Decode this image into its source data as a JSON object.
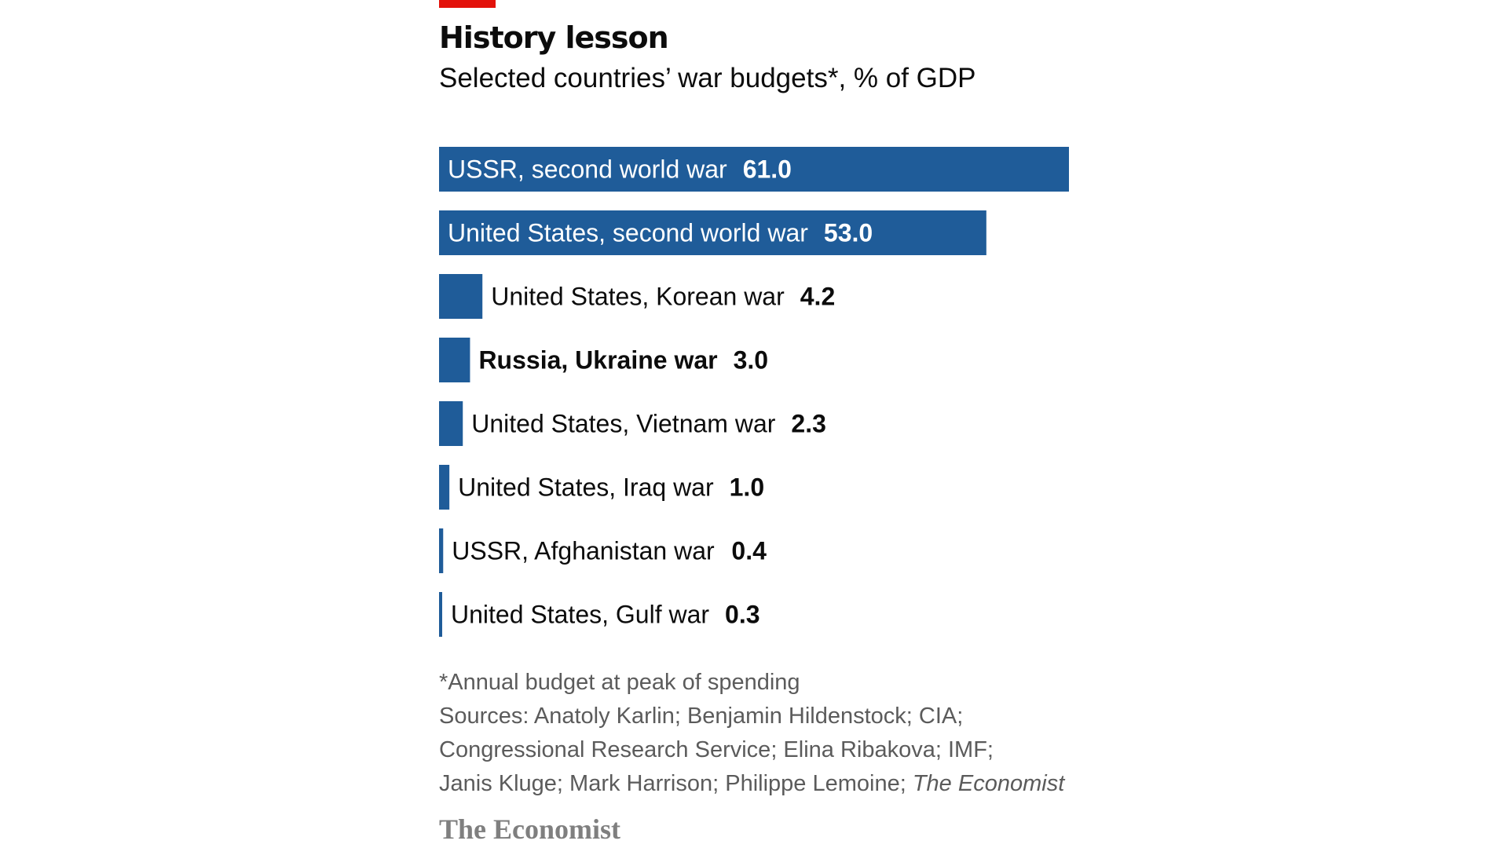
{
  "header": {
    "title": "History lesson",
    "subtitle": "Selected countries’ war budgets*, % of GDP"
  },
  "colors": {
    "bar": "#1f5c99",
    "accent": "#e3120b",
    "text": "#0c0c0c",
    "inside_label": "#ffffff",
    "footnote": "#5b5b5b"
  },
  "chart_data": {
    "type": "bar",
    "orientation": "horizontal",
    "title": "History lesson",
    "subtitle": "Selected countries’ war budgets*, % of GDP",
    "xlabel": "",
    "ylabel": "",
    "xlim": [
      0,
      61
    ],
    "grid": false,
    "legend": "none",
    "categories": [
      "USSR, second world war",
      "United States, second world war",
      "United States, Korean war",
      "Russia, Ukraine war",
      "United States, Vietnam war",
      "United States, Iraq war",
      "USSR, Afghanistan war",
      "United States, Gulf war"
    ],
    "values": [
      61.0,
      53.0,
      4.2,
      3.0,
      2.3,
      1.0,
      0.4,
      0.3
    ],
    "value_labels": [
      "61.0",
      "53.0",
      "4.2",
      "3.0",
      "2.3",
      "1.0",
      "0.4",
      "0.3"
    ],
    "highlighted": [
      "Russia, Ukraine war"
    ]
  },
  "footer": {
    "note": "*Annual budget at peak of spending",
    "sources_lines": [
      "Sources: Anatoly Karlin; Benjamin Hildenstock; CIA;",
      "Congressional Research Service; Elina Ribakova; IMF;",
      "Janis Kluge; Mark Harrison; Philippe Lemoine; "
    ],
    "sources_italic": "The Economist",
    "brand": "The Economist"
  }
}
